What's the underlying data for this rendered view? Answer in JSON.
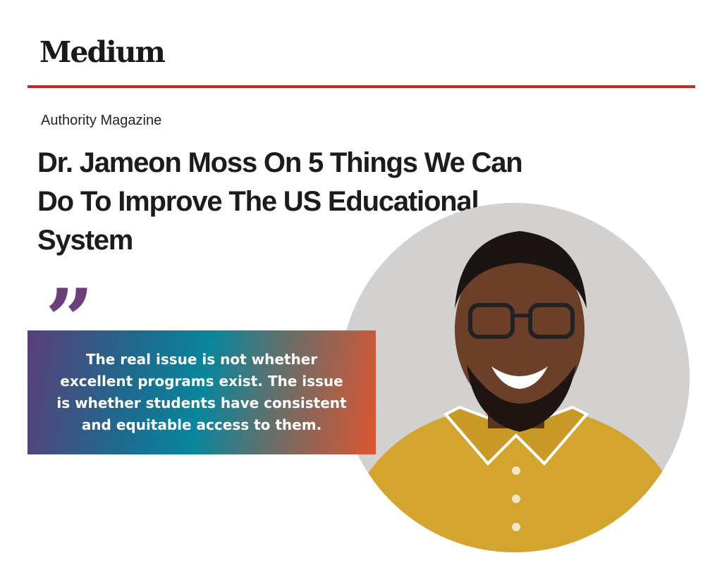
{
  "header": {
    "logo": "Medium",
    "rule_color": "#c0282d"
  },
  "article": {
    "publication": "Authority Magazine",
    "title": "Dr. Jameon Moss On 5 Things We Can Do To Improve The US Educational System"
  },
  "quote": {
    "mark": "”",
    "text": "The real issue is not whether excellent programs exist. The issue is whether students have consistent and equitable access to them.",
    "gradient_colors": [
      "#5a3f7a",
      "#08869c",
      "#dc5530"
    ]
  },
  "photo": {
    "subject": "portrait-photo"
  }
}
